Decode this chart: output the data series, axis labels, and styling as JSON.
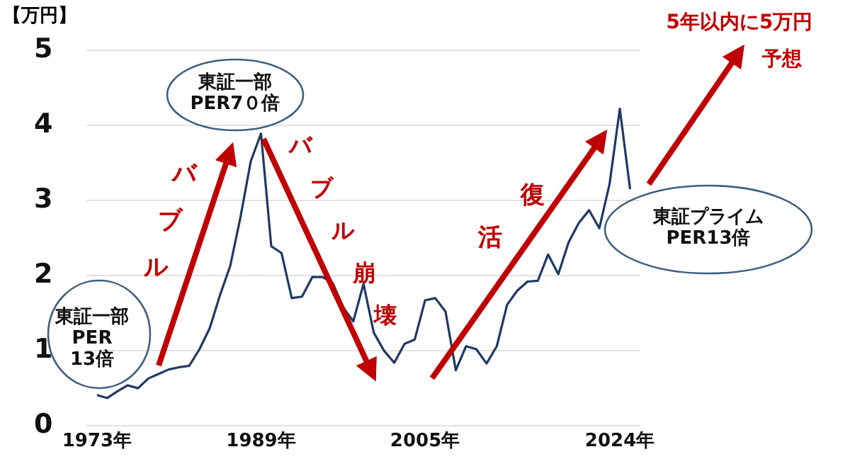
{
  "chart_data": {
    "type": "line",
    "ylabel": "【万円】",
    "x": [
      1973,
      1974,
      1975,
      1976,
      1977,
      1978,
      1979,
      1980,
      1981,
      1982,
      1983,
      1984,
      1985,
      1986,
      1987,
      1988,
      1989,
      1990,
      1991,
      1992,
      1993,
      1994,
      1995,
      1996,
      1997,
      1998,
      1999,
      2000,
      2001,
      2002,
      2003,
      2004,
      2005,
      2006,
      2007,
      2008,
      2009,
      2010,
      2011,
      2012,
      2013,
      2014,
      2015,
      2016,
      2017,
      2018,
      2019,
      2020,
      2021,
      2022,
      2023,
      2024,
      2025
    ],
    "series": [
      {
        "color": "#1f3864",
        "values": [
          0.41,
          0.37,
          0.46,
          0.54,
          0.5,
          0.63,
          0.69,
          0.75,
          0.78,
          0.8,
          1.02,
          1.3,
          1.74,
          2.13,
          2.78,
          3.52,
          3.89,
          2.39,
          2.3,
          1.7,
          1.72,
          1.98,
          1.98,
          1.9,
          1.58,
          1.39,
          1.89,
          1.24,
          1.0,
          0.84,
          1.09,
          1.15,
          1.67,
          1.7,
          1.52,
          0.74,
          1.06,
          1.02,
          0.83,
          1.06,
          1.61,
          1.8,
          1.92,
          1.93,
          2.28,
          2.02,
          2.44,
          2.7,
          2.87,
          2.63,
          3.22,
          4.22,
          3.15
        ]
      }
    ],
    "xlim": [
      1972,
      2026
    ],
    "xticks": [
      {
        "value": 1973,
        "label": "1973年"
      },
      {
        "value": 1989,
        "label": "1989年"
      },
      {
        "value": 2005,
        "label": "2005年"
      },
      {
        "value": 2024,
        "label": "2024年"
      }
    ],
    "ylim": [
      0,
      5
    ],
    "yticks": [
      0,
      1,
      2,
      3,
      4,
      5
    ],
    "grid": "y",
    "marker": "none",
    "line_style": "solid",
    "annotations": [
      "東証一部\nPER\n13倍",
      "東証一部\nPER7０倍",
      "東証プライム\nPER13倍",
      "バブル",
      "バブル崩壊",
      "復活",
      "5年以内に5万円",
      "予想"
    ]
  }
}
